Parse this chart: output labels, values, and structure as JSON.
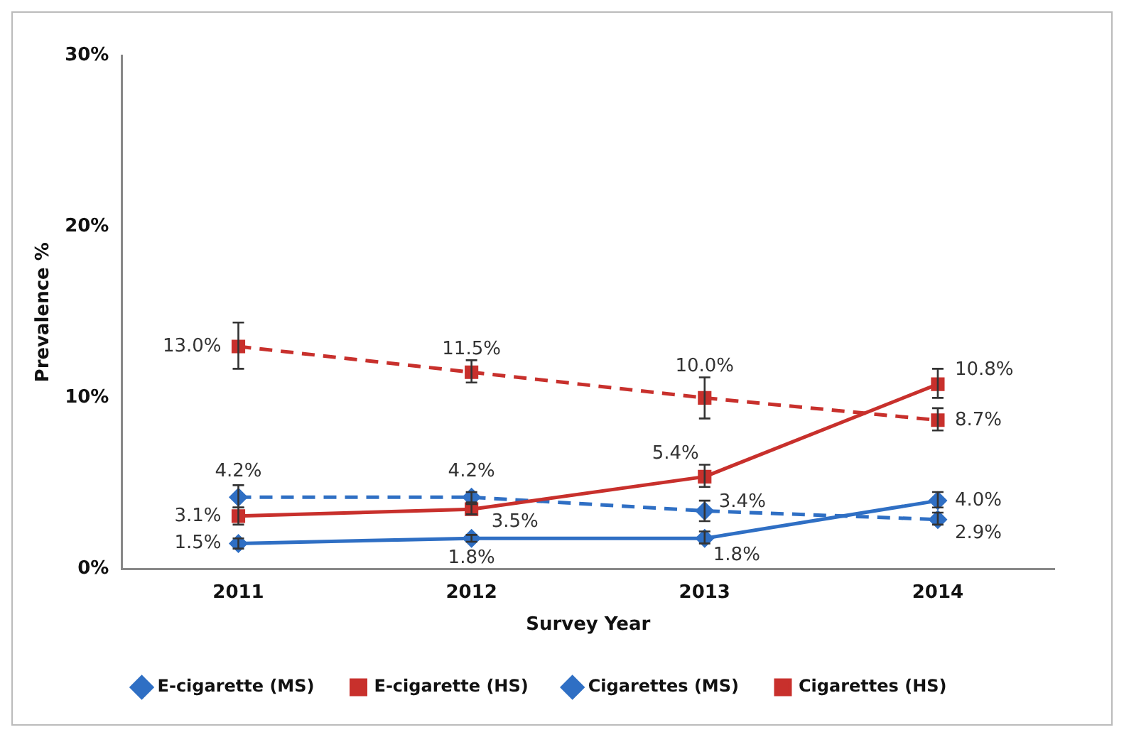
{
  "chart_data": {
    "type": "line",
    "xlabel": "Survey Year",
    "ylabel": "Prevalence %",
    "categories": [
      "2011",
      "2012",
      "2013",
      "2014"
    ],
    "ylim": [
      0,
      30
    ],
    "yticks": [
      {
        "value": 0,
        "label": "0%"
      },
      {
        "value": 10,
        "label": "10%"
      },
      {
        "value": 20,
        "label": "20%"
      },
      {
        "value": 30,
        "label": "30%"
      }
    ],
    "grid": false,
    "legend": "bottom",
    "series": [
      {
        "name": "E-cigarette (MS)",
        "color": "#2f6fc4",
        "marker": "diamond",
        "line_style": "solid",
        "values": [
          1.5,
          1.8,
          1.8,
          4.0
        ],
        "value_labels": [
          "1.5%",
          "1.8%",
          "1.8%",
          "4.0%"
        ],
        "errors": [
          [
            1.2,
            1.8
          ],
          [
            1.6,
            2.0
          ],
          [
            1.5,
            2.2
          ],
          [
            3.6,
            4.5
          ]
        ]
      },
      {
        "name": "E-cigarette (HS)",
        "color": "#c8302c",
        "marker": "square",
        "line_style": "solid",
        "values": [
          3.1,
          3.5,
          5.4,
          10.8
        ],
        "value_labels": [
          "3.1%",
          "3.5%",
          "5.4%",
          "10.8%"
        ],
        "errors": [
          [
            2.6,
            3.6
          ],
          [
            3.2,
            3.8
          ],
          [
            4.8,
            6.1
          ],
          [
            10.0,
            11.7
          ]
        ]
      },
      {
        "name": "Cigarettes (MS)",
        "color": "#2f6fc4",
        "marker": "diamond",
        "line_style": "dashed",
        "values": [
          4.2,
          4.2,
          3.4,
          2.9
        ],
        "value_labels": [
          "4.2%",
          "4.2%",
          "3.4%",
          "2.9%"
        ],
        "errors": [
          [
            3.6,
            4.9
          ],
          [
            3.9,
            4.5
          ],
          [
            2.8,
            4.0
          ],
          [
            2.6,
            3.3
          ]
        ]
      },
      {
        "name": "Cigarettes (HS)",
        "color": "#c8302c",
        "marker": "square",
        "line_style": "dashed",
        "values": [
          13.0,
          11.5,
          10.0,
          8.7
        ],
        "value_labels": [
          "13.0%",
          "11.5%",
          "10.0%",
          "8.7%"
        ],
        "errors": [
          [
            11.7,
            14.4
          ],
          [
            10.9,
            12.2
          ],
          [
            8.8,
            11.2
          ],
          [
            8.1,
            9.4
          ]
        ]
      }
    ]
  }
}
